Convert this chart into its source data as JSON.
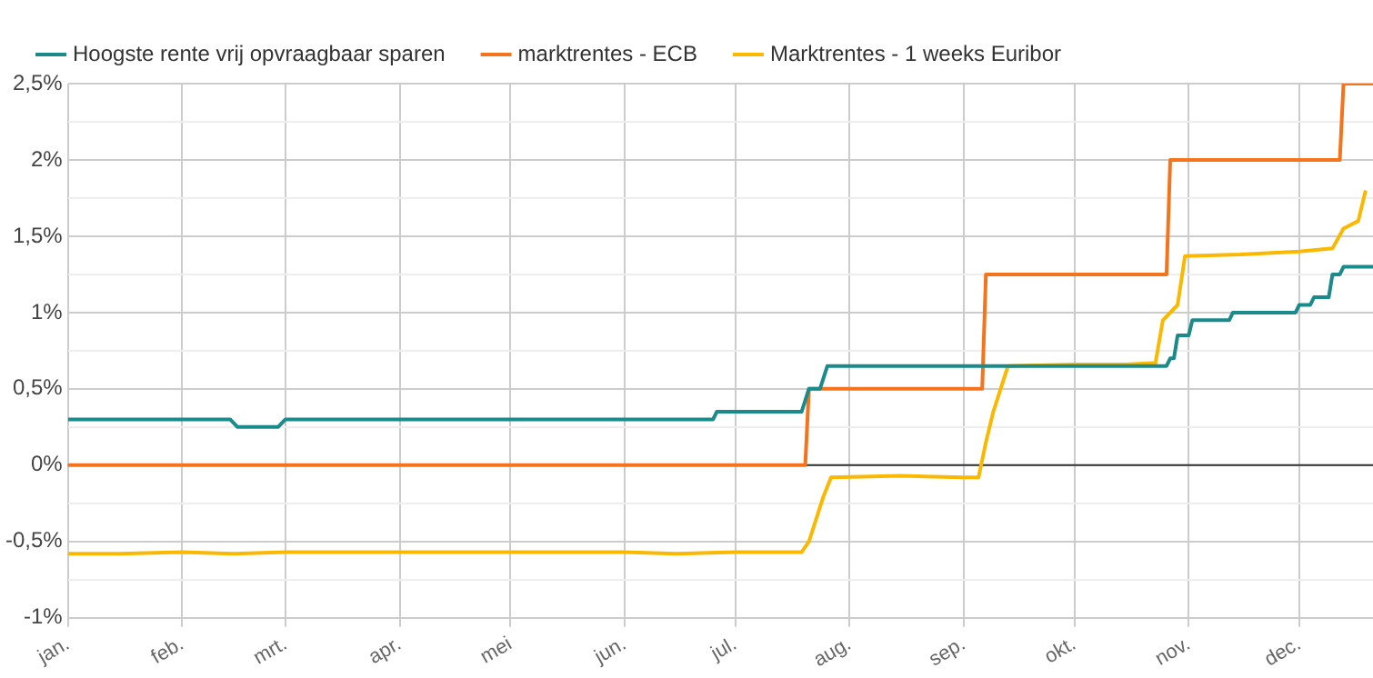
{
  "chart_data": {
    "type": "line",
    "xlim": [
      "--01-01",
      "--12-21"
    ],
    "xticks": [
      {
        "value": "--01-01",
        "label": "jan."
      },
      {
        "value": "--02-01",
        "label": "feb."
      },
      {
        "value": "--03-01",
        "label": "mrt."
      },
      {
        "value": "--04-01",
        "label": "apr."
      },
      {
        "value": "--05-01",
        "label": "mei"
      },
      {
        "value": "--06-01",
        "label": "jun."
      },
      {
        "value": "--07-01",
        "label": "jul."
      },
      {
        "value": "--08-01",
        "label": "aug."
      },
      {
        "value": "--09-01",
        "label": "sep."
      },
      {
        "value": "--10-01",
        "label": "okt."
      },
      {
        "value": "--11-01",
        "label": "nov."
      },
      {
        "value": "--12-01",
        "label": "dec."
      }
    ],
    "ylim": [
      -1,
      2.5
    ],
    "yticks": [
      {
        "value": -1,
        "label": "-1%"
      },
      {
        "value": -0.75,
        "label": null
      },
      {
        "value": -0.5,
        "label": "-0,5%"
      },
      {
        "value": -0.25,
        "label": null
      },
      {
        "value": 0,
        "label": "0%"
      },
      {
        "value": 0.25,
        "label": null
      },
      {
        "value": 0.5,
        "label": "0,5%"
      },
      {
        "value": 0.75,
        "label": null
      },
      {
        "value": 1,
        "label": "1%"
      },
      {
        "value": 1.25,
        "label": null
      },
      {
        "value": 1.5,
        "label": "1,5%"
      },
      {
        "value": 1.75,
        "label": null
      },
      {
        "value": 2,
        "label": "2%"
      },
      {
        "value": 2.25,
        "label": null
      },
      {
        "value": 2.5,
        "label": "2,5%"
      }
    ],
    "grid": true,
    "legend": "top",
    "marker": "none",
    "line_style": "solid",
    "ref_lines": [
      {
        "axis": "y",
        "value": 0,
        "label": null,
        "color": "#333333"
      }
    ],
    "series": [
      {
        "name": "Hoogste rente vrij opvraagbaar sparen",
        "color": "#1a8a8a",
        "x": [
          "--01-01",
          "--02-14",
          "--02-16",
          "--02-27",
          "--03-01",
          "--06-25",
          "--06-26",
          "--07-19",
          "--07-21",
          "--07-24",
          "--07-26",
          "--10-26",
          "--10-27",
          "--10-28",
          "--10-29",
          "--11-01",
          "--11-02",
          "--11-12",
          "--11-13",
          "--11-30",
          "--12-01",
          "--12-04",
          "--12-05",
          "--12-09",
          "--12-10",
          "--12-12",
          "--12-13",
          "--12-21"
        ],
        "values": [
          0.3,
          0.3,
          0.25,
          0.25,
          0.3,
          0.3,
          0.35,
          0.35,
          0.5,
          0.5,
          0.65,
          0.65,
          0.7,
          0.7,
          0.85,
          0.85,
          0.95,
          0.95,
          1.0,
          1.0,
          1.05,
          1.05,
          1.1,
          1.1,
          1.25,
          1.25,
          1.3,
          1.3
        ]
      },
      {
        "name": "marktrentes - ECB",
        "color": "#f4731c",
        "x": [
          "--01-01",
          "--07-20",
          "--07-21",
          "--09-06",
          "--09-07",
          "--10-26",
          "--10-27",
          "--12-12",
          "--12-13",
          "--12-21"
        ],
        "values": [
          0,
          0,
          0.5,
          0.5,
          1.25,
          1.25,
          2.0,
          2.0,
          2.5,
          2.5
        ]
      },
      {
        "name": "Marktrentes - 1 weeks Euribor",
        "color": "#fbb800",
        "x": [
          "--01-01",
          "--01-15",
          "--02-01",
          "--02-15",
          "--03-01",
          "--04-01",
          "--05-01",
          "--06-01",
          "--06-15",
          "--07-01",
          "--07-19",
          "--07-21",
          "--07-23",
          "--07-25",
          "--07-27",
          "--08-15",
          "--09-01",
          "--09-05",
          "--09-07",
          "--09-09",
          "--09-13",
          "--10-01",
          "--10-15",
          "--10-23",
          "--10-25",
          "--10-29",
          "--10-31",
          "--11-15",
          "--12-01",
          "--12-10",
          "--12-13",
          "--12-17",
          "--12-19"
        ],
        "values": [
          -0.58,
          -0.58,
          -0.57,
          -0.58,
          -0.57,
          -0.57,
          -0.57,
          -0.57,
          -0.58,
          -0.57,
          -0.57,
          -0.5,
          -0.35,
          -0.2,
          -0.08,
          -0.07,
          -0.08,
          -0.08,
          0.15,
          0.35,
          0.65,
          0.66,
          0.66,
          0.67,
          0.95,
          1.05,
          1.37,
          1.38,
          1.4,
          1.42,
          1.55,
          1.6,
          1.8
        ]
      }
    ]
  }
}
